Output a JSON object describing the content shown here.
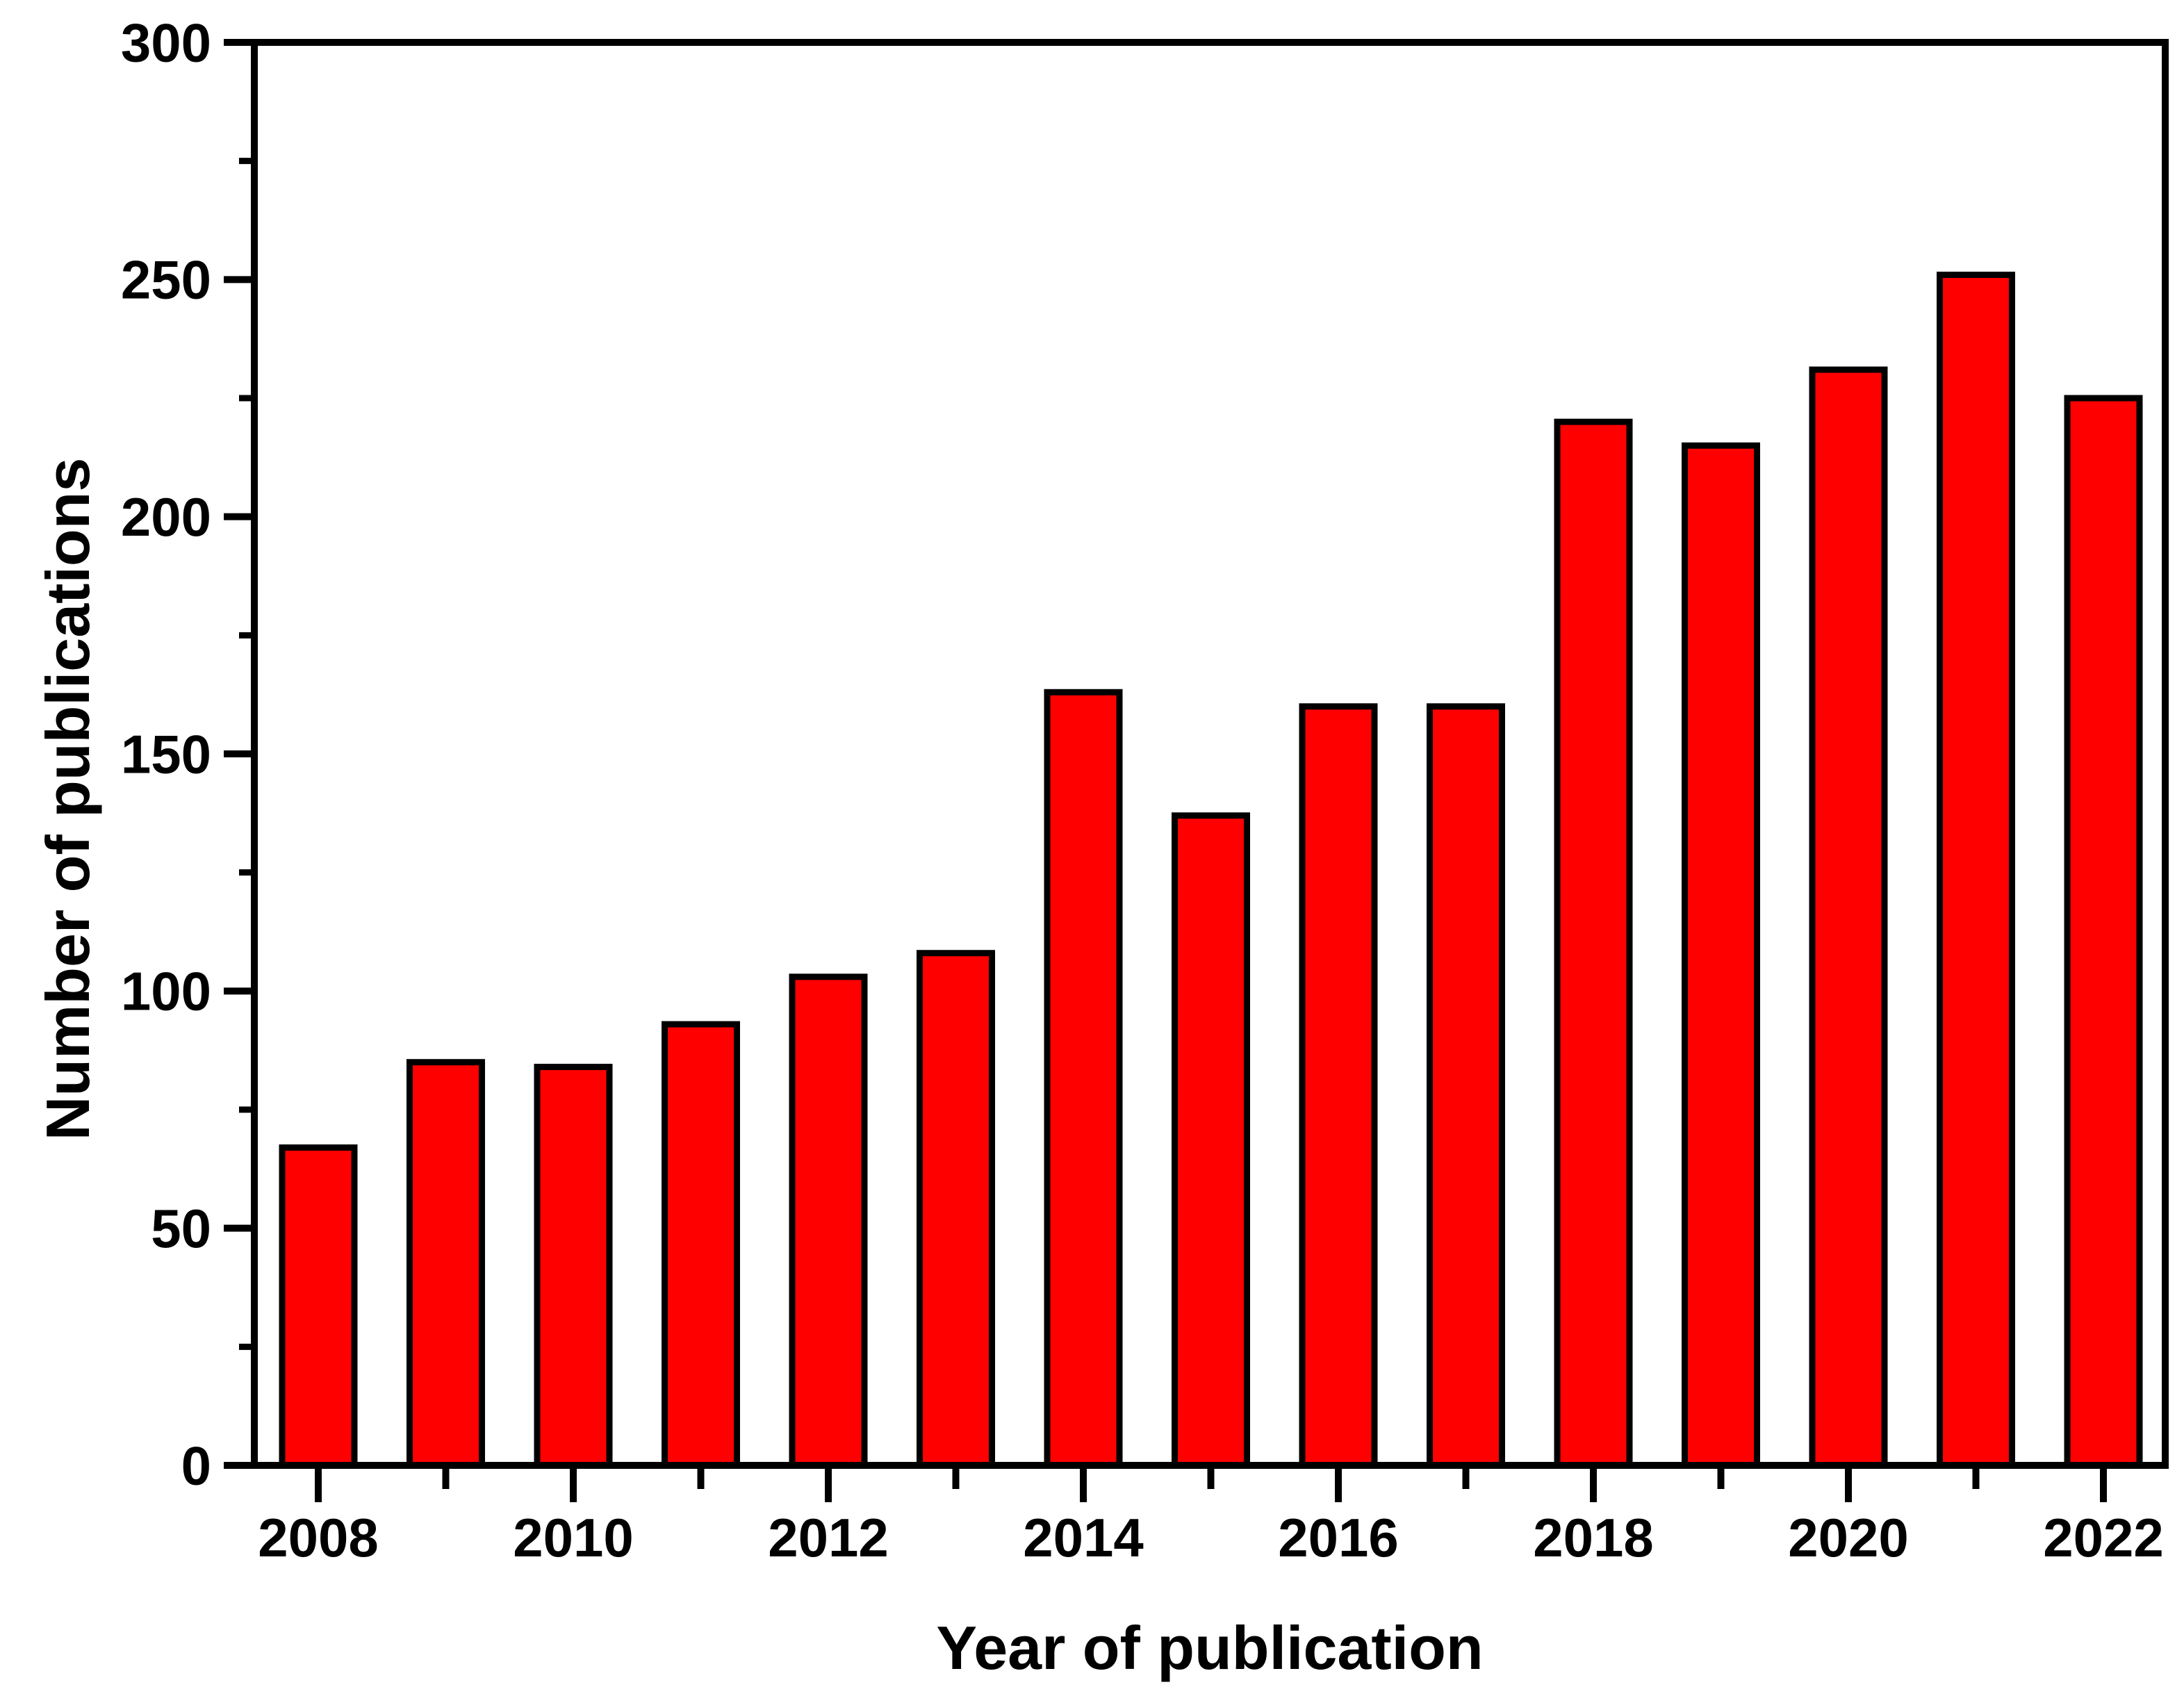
{
  "chart_data": {
    "type": "bar",
    "title": "",
    "xlabel": "Year of publication",
    "ylabel": "Number of publications",
    "categories": [
      "2008",
      "2009",
      "2010",
      "2011",
      "2012",
      "2013",
      "2014",
      "2015",
      "2016",
      "2017",
      "2018",
      "2019",
      "2020",
      "2021",
      "2022"
    ],
    "values": [
      67,
      85,
      84,
      93,
      103,
      108,
      163,
      137,
      160,
      160,
      220,
      215,
      231,
      251,
      225
    ],
    "ylim": [
      0,
      300
    ],
    "y_major_ticks": [
      0,
      50,
      100,
      150,
      200,
      250,
      300
    ],
    "y_minor_tick_step": 25,
    "x_labeled_categories": [
      "2008",
      "2010",
      "2012",
      "2014",
      "2016",
      "2018",
      "2020",
      "2022"
    ],
    "grid": false,
    "legend": "none",
    "colors": {
      "bar_fill": "#FF0000",
      "bar_stroke": "#000000",
      "axis": "#000000",
      "text": "#000000",
      "background": "#FFFFFF"
    }
  }
}
